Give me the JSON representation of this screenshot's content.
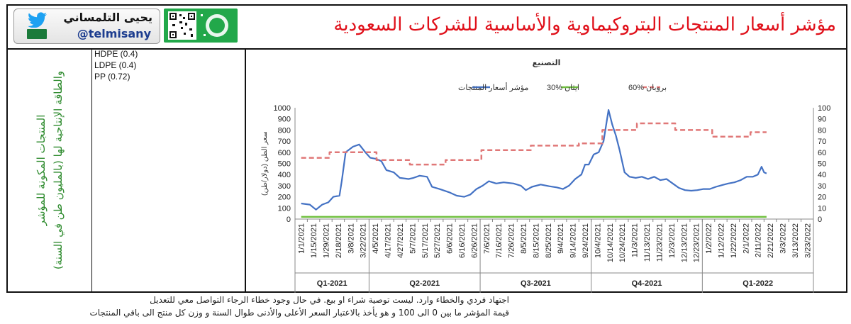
{
  "header": {
    "title": "مؤشر أسعار المنتجات البتروكيماوية والأساسية للشركات السعودية",
    "author_name": "يحيى التلمساني",
    "author_handle": "@telmisany",
    "twitter_icon": "twitter-bird-icon",
    "qr_icon": "qr-code-icon"
  },
  "left_panel": {
    "label_line1": "المنتجات المكونة للمؤشر",
    "label_line2": "والطاقة الإنتاجية لها (بالمليون طن في السنة)"
  },
  "components": [
    "HDPE (0.4)",
    "LDPE (0.4)",
    "PP (0.72)"
  ],
  "notes": [
    "اجتهاد فردي والخطاء وارد. ليست توصية شراء او بيع. في حال وجود خطاء الرجاء التواصل معي للتعديل",
    "قيمة المؤشر ما بين 0 الى 100 و هو يأخذ بالاعتبار السعر الأعلى والأدنى طوال السنة و وزن كل منتج الى باقي المنتجات"
  ],
  "colors": {
    "title": "#e0101a",
    "index_line": "#4472c4",
    "ethane_line": "#70c040",
    "propane_line": "#e07878",
    "side_label": "#2e8b2e"
  },
  "chart_data": {
    "type": "line",
    "title": "التصنيع",
    "ylabel_left": "سعر الطن (دولار/طن)",
    "ylim_left": [
      0,
      1000
    ],
    "ylim_right": [
      0,
      100
    ],
    "left_ticks": [
      "0",
      "100",
      "200",
      "300",
      "400",
      "500",
      "600",
      "700",
      "800",
      "900",
      "1000"
    ],
    "right_ticks": [
      "0",
      "10",
      "20",
      "30",
      "40",
      "50",
      "60",
      "70",
      "80",
      "90",
      "100"
    ],
    "grid": false,
    "legend_position": "top",
    "x_tick_labels": [
      "1/1/2021",
      "1/15/2021",
      "1/29/2021",
      "2/18/2021",
      "3/8/2021",
      "3/22/2021",
      "4/5/2021",
      "4/17/2021",
      "4/27/2021",
      "5/7/2021",
      "5/17/2021",
      "5/27/2021",
      "6/6/2021",
      "6/16/2021",
      "6/26/2021",
      "7/6/2021",
      "7/16/2021",
      "7/26/2021",
      "8/5/2021",
      "8/15/2021",
      "8/25/2021",
      "9/4/2021",
      "9/14/2021",
      "9/24/2021",
      "10/4/2021",
      "10/14/2021",
      "10/24/2021",
      "11/3/2021",
      "11/13/2021",
      "11/23/2021",
      "12/3/2021",
      "12/13/2021",
      "12/23/2021",
      "1/2/2022",
      "1/12/2022",
      "1/22/2022",
      "2/1/2022",
      "2/11/2022",
      "2/21/2022",
      "3/3/2022",
      "3/13/2022",
      "3/23/2022"
    ],
    "quarters": [
      "Q1-2021",
      "Q2-2021",
      "Q3-2021",
      "Q4-2021",
      "Q1-2022"
    ],
    "series": [
      {
        "name": "مؤشر أسعار المنتجات",
        "axis": "left",
        "points": [
          [
            0,
            140
          ],
          [
            0.7,
            130
          ],
          [
            1.2,
            85
          ],
          [
            1.7,
            130
          ],
          [
            2.2,
            150
          ],
          [
            2.6,
            200
          ],
          [
            3.1,
            210
          ],
          [
            3.3,
            350
          ],
          [
            3.6,
            600
          ],
          [
            4.2,
            650
          ],
          [
            4.7,
            670
          ],
          [
            5.2,
            600
          ],
          [
            5.6,
            550
          ],
          [
            6.1,
            540
          ],
          [
            6.5,
            520
          ],
          [
            6.9,
            440
          ],
          [
            7.5,
            420
          ],
          [
            8.0,
            370
          ],
          [
            8.7,
            360
          ],
          [
            9.1,
            370
          ],
          [
            9.6,
            390
          ],
          [
            10.2,
            380
          ],
          [
            10.6,
            290
          ],
          [
            11.2,
            270
          ],
          [
            12.0,
            240
          ],
          [
            12.6,
            210
          ],
          [
            13.2,
            200
          ],
          [
            13.7,
            220
          ],
          [
            14.2,
            270
          ],
          [
            14.7,
            300
          ],
          [
            15.2,
            340
          ],
          [
            15.8,
            320
          ],
          [
            16.4,
            330
          ],
          [
            17.2,
            320
          ],
          [
            17.8,
            300
          ],
          [
            18.2,
            260
          ],
          [
            18.7,
            290
          ],
          [
            19.4,
            310
          ],
          [
            20.1,
            295
          ],
          [
            20.7,
            285
          ],
          [
            21.2,
            270
          ],
          [
            21.7,
            300
          ],
          [
            22.2,
            360
          ],
          [
            22.7,
            400
          ],
          [
            23.0,
            490
          ],
          [
            23.3,
            490
          ],
          [
            23.7,
            580
          ],
          [
            24.1,
            600
          ],
          [
            24.5,
            700
          ],
          [
            24.9,
            980
          ],
          [
            25.2,
            850
          ],
          [
            25.5,
            750
          ],
          [
            25.8,
            620
          ],
          [
            26.2,
            420
          ],
          [
            26.6,
            380
          ],
          [
            27.1,
            370
          ],
          [
            27.6,
            380
          ],
          [
            28.1,
            360
          ],
          [
            28.6,
            380
          ],
          [
            29.1,
            350
          ],
          [
            29.6,
            360
          ],
          [
            30.1,
            320
          ],
          [
            30.6,
            280
          ],
          [
            31.1,
            260
          ],
          [
            31.6,
            255
          ],
          [
            32.1,
            260
          ],
          [
            32.6,
            270
          ],
          [
            33.1,
            270
          ],
          [
            33.6,
            290
          ],
          [
            34.1,
            305
          ],
          [
            34.6,
            320
          ],
          [
            35.1,
            330
          ],
          [
            35.6,
            350
          ],
          [
            36.1,
            380
          ],
          [
            36.6,
            380
          ],
          [
            37.0,
            400
          ],
          [
            37.3,
            470
          ],
          [
            37.5,
            420
          ],
          [
            37.7,
            410
          ]
        ]
      },
      {
        "name": "ايثان %30",
        "axis": "right",
        "points": [
          [
            0,
            2
          ],
          [
            37.7,
            2
          ]
        ]
      },
      {
        "name": "بروبان %60",
        "axis": "right",
        "points": [
          [
            0,
            55
          ],
          [
            2.3,
            55
          ],
          [
            2.3,
            60
          ],
          [
            6.1,
            60
          ],
          [
            6.1,
            53
          ],
          [
            8.8,
            53
          ],
          [
            8.8,
            49
          ],
          [
            11.7,
            49
          ],
          [
            11.7,
            53
          ],
          [
            14.6,
            53
          ],
          [
            14.6,
            62
          ],
          [
            18.6,
            62
          ],
          [
            18.6,
            66
          ],
          [
            22.5,
            66
          ],
          [
            22.5,
            68
          ],
          [
            24.4,
            68
          ],
          [
            24.4,
            80
          ],
          [
            27.2,
            80
          ],
          [
            27.2,
            86
          ],
          [
            30.3,
            86
          ],
          [
            30.3,
            80
          ],
          [
            33.3,
            80
          ],
          [
            33.3,
            74
          ],
          [
            36.4,
            74
          ],
          [
            36.4,
            78
          ],
          [
            37.7,
            78
          ]
        ]
      }
    ]
  }
}
